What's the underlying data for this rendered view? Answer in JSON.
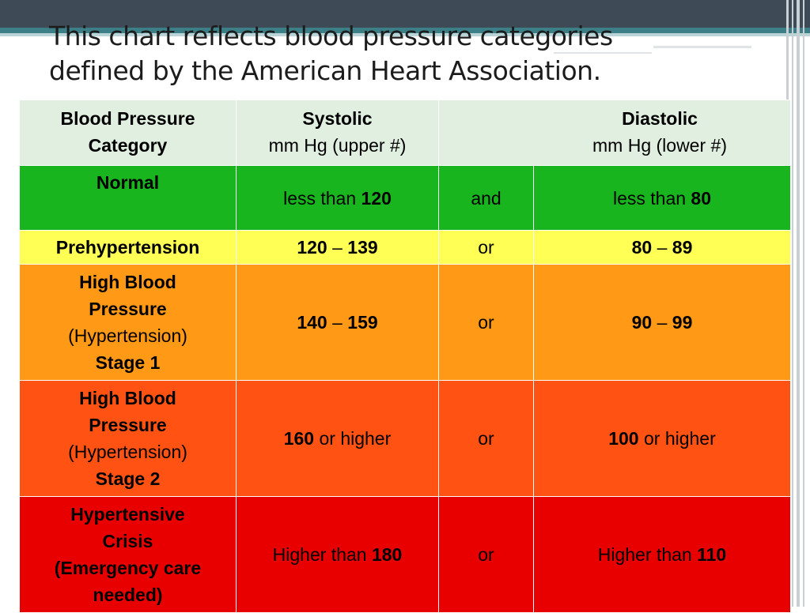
{
  "slide": {
    "title_line1": "This chart reflects blood pressure categories",
    "title_line2": "defined by the American Heart Association."
  },
  "table": {
    "header": {
      "category_line1": "Blood Pressure",
      "category_line2": "Category",
      "systolic_title": "Systolic",
      "systolic_unit": "mm Hg (upper #)",
      "diastolic_title": "Diastolic",
      "diastolic_unit": "mm Hg (lower #)"
    },
    "rows": [
      {
        "category": "Normal",
        "sys_prefix": "less than ",
        "sys_bold": "120",
        "connector": "and",
        "dia_prefix": "less than ",
        "dia_bold": "80",
        "color": "#18b51e"
      },
      {
        "category": "Prehypertension",
        "sys_a": "120",
        "sys_dash": " – ",
        "sys_b": "139",
        "connector": "or",
        "dia_a": "80",
        "dia_dash": " – ",
        "dia_b": "89",
        "color": "#ffff55"
      },
      {
        "category_line1": "High Blood",
        "category_line2": "Pressure",
        "category_line3": "(Hypertension)",
        "category_line4": "Stage 1",
        "sys_a": "140",
        "sys_dash": " – ",
        "sys_b": "159",
        "connector": "or",
        "dia_a": "90",
        "dia_dash": " – ",
        "dia_b": "99",
        "color": "#ff9916"
      },
      {
        "category_line1": "High Blood",
        "category_line2": "Pressure",
        "category_line3": "(Hypertension)",
        "category_line4": "Stage 2",
        "sys_bold": "160",
        "sys_suffix": " or higher",
        "connector": "or",
        "dia_bold": "100",
        "dia_suffix": " or higher",
        "color": "#ff5213"
      },
      {
        "category_line1": "Hypertensive",
        "category_line2": "Crisis",
        "category_line3": "(Emergency care",
        "category_line4": "needed)",
        "sys_prefix": "Higher than ",
        "sys_bold": "180",
        "connector": "or",
        "dia_prefix": "Higher than ",
        "dia_bold": "110",
        "color": "#e80000"
      }
    ]
  }
}
